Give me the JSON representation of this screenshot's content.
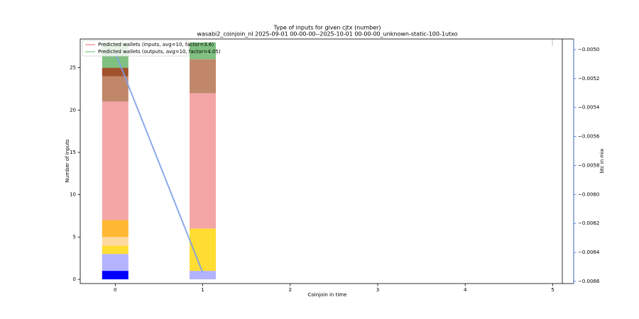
{
  "chart_data": {
    "type": "bar",
    "stacked": true,
    "title": "Type of inputs for given cjtx (number)",
    "subtitle": "wasabi2_coinjoin_nl 2025-09-01 00-00-00--2025-10-01 00-00-00_unknown-static-100-1utxo",
    "xlabel": "Coinjoin in time",
    "ylabel": "Number of inputs",
    "y2label": "btc in mix",
    "x": [
      0,
      1
    ],
    "bar_width": 0.3,
    "series": [
      {
        "color": "#0000ff",
        "values": [
          1,
          0
        ]
      },
      {
        "color": "#b3b3ff",
        "values": [
          2,
          1
        ]
      },
      {
        "color": "#ffdd33",
        "values": [
          1,
          5
        ]
      },
      {
        "color": "#fdd9a0",
        "values": [
          1,
          0
        ]
      },
      {
        "color": "#ffb833",
        "values": [
          2,
          0
        ]
      },
      {
        "color": "#f4a6a6",
        "values": [
          14,
          16
        ]
      },
      {
        "color": "#c1876b",
        "values": [
          3,
          4
        ]
      },
      {
        "color": "#a0522d",
        "values": [
          1,
          0
        ]
      },
      {
        "color": "#80c080",
        "values": [
          3,
          2
        ]
      }
    ],
    "line_series": [
      {
        "color": "#7f9fe8",
        "axis": "y2",
        "values": [
          -0.00502,
          -0.00654
        ]
      }
    ],
    "legend": [
      {
        "name": "Predicted wallets (inputs, avg=10, factor=3.6)",
        "color": "#f08080"
      },
      {
        "name": "Predicted wallets (outputs, avg=10, factor=4.05)",
        "color": "#80c080"
      }
    ],
    "legend_position": "upper left",
    "xlim": [
      -0.4,
      5.24
    ],
    "xticks": [
      0,
      1,
      2,
      3,
      4,
      5
    ],
    "ylim": [
      -0.5,
      28.4
    ],
    "yticks": [
      0,
      5,
      10,
      15,
      20,
      25
    ],
    "y2lim": [
      -0.006615,
      -0.004927
    ],
    "y2ticks": [
      {
        "value": -0.005,
        "label": "−0.0050"
      },
      {
        "value": -0.0052,
        "label": "−0.0052"
      },
      {
        "value": -0.0054,
        "label": "−0.0054"
      },
      {
        "value": -0.0056,
        "label": "−0.0056"
      },
      {
        "value": -0.0058,
        "label": "−0.0058"
      },
      {
        "value": -0.006,
        "label": "−0.0060"
      },
      {
        "value": -0.0062,
        "label": "−0.0062"
      },
      {
        "value": -0.0064,
        "label": "−0.0064"
      },
      {
        "value": -0.0066,
        "label": "−0.0066"
      }
    ],
    "y2_color": "#3a6fd8"
  }
}
